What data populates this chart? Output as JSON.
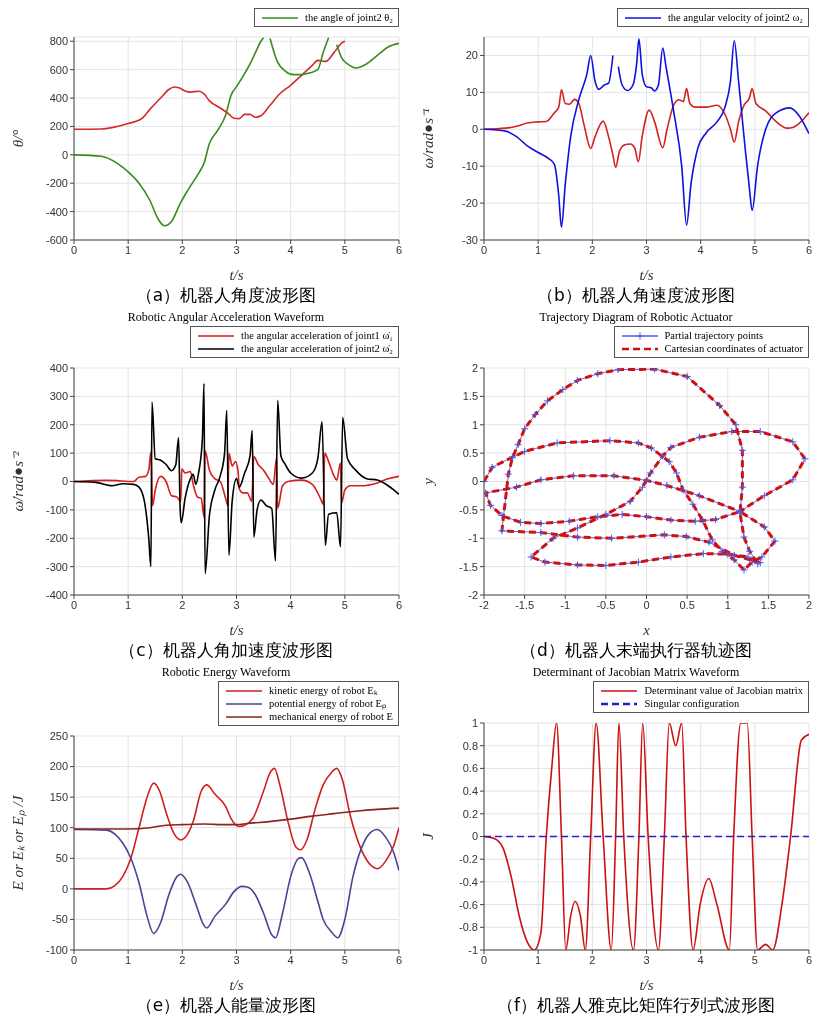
{
  "chart_data": [
    {
      "type": "line",
      "xlabel": "t/s",
      "ylabel": "θ/°",
      "xlim": [
        0,
        6
      ],
      "xticks": [
        0,
        1,
        2,
        3,
        4,
        5,
        6
      ],
      "ylim": [
        -600,
        830
      ],
      "yticks": [
        -600,
        -400,
        -200,
        0,
        200,
        400,
        600,
        800
      ],
      "grid": true,
      "legend": "top",
      "annotations": [
        "（a）机器人角度波形图"
      ],
      "series": [
        {
          "color": "#d42a2a",
          "x": [
            0,
            0.5,
            0.8,
            1.0,
            1.25,
            1.4,
            1.6,
            1.75,
            1.85,
            1.95,
            2.05,
            2.15,
            2.3,
            2.4,
            2.5,
            2.7,
            2.85,
            2.95,
            3.05,
            3.15,
            3.25,
            3.35,
            3.45,
            3.6,
            3.8,
            4.0,
            4.2,
            4.4,
            4.5,
            4.65,
            4.8,
            4.95,
            5.0
          ],
          "values": [
            180,
            182,
            200,
            220,
            255,
            320,
            400,
            460,
            478,
            470,
            450,
            442,
            448,
            430,
            380,
            330,
            290,
            258,
            255,
            285,
            285,
            265,
            275,
            340,
            430,
            490,
            560,
            630,
            665,
            658,
            720,
            790,
            800
          ]
        },
        {
          "name": "the angle of joint2 θ₂",
          "color": "#3a8a1e",
          "x": [
            0,
            0.5,
            0.8,
            1.0,
            1.2,
            1.4,
            1.55,
            1.67,
            1.8,
            1.95,
            2.1,
            2.3,
            2.4,
            2.5,
            2.65,
            2.8,
            2.9,
            3.0,
            3.1,
            3.25,
            3.35,
            3.45,
            3.5,
            3.55,
            3.62,
            3.75,
            3.9,
            4.05,
            4.2,
            4.35,
            4.5,
            4.6,
            4.7,
            4.78,
            4.85,
            4.95,
            5.05,
            5.2,
            5.4,
            5.6,
            5.8,
            6.0
          ],
          "values": [
            0,
            -10,
            -60,
            -120,
            -200,
            -320,
            -450,
            -500,
            -470,
            -350,
            -250,
            -130,
            -60,
            80,
            170,
            280,
            420,
            480,
            540,
            640,
            720,
            800,
            825,
            null,
            820,
            660,
            590,
            565,
            565,
            577,
            600,
            720,
            825,
            null,
            776,
            677,
            640,
            612,
            640,
            700,
            760,
            785
          ]
        }
      ]
    },
    {
      "type": "line",
      "xlabel": "t/s",
      "ylabel": "ω/rad●s⁻¹",
      "xlim": [
        0,
        6
      ],
      "xticks": [
        0,
        1,
        2,
        3,
        4,
        5,
        6
      ],
      "ylim": [
        -30,
        25
      ],
      "yticks": [
        -30,
        -20,
        -10,
        0,
        10,
        20
      ],
      "grid": true,
      "legend": "top",
      "annotations": [
        "（b）机器人角速度波形图"
      ],
      "series": [
        {
          "color": "#d42020",
          "x": [
            0,
            0.4,
            0.6,
            0.8,
            1.0,
            1.15,
            1.3,
            1.38,
            1.43,
            1.5,
            1.58,
            1.67,
            1.75,
            1.85,
            1.97,
            2.05,
            2.2,
            2.3,
            2.38,
            2.43,
            2.5,
            2.6,
            2.7,
            2.78,
            2.85,
            2.92,
            3.05,
            3.15,
            3.3,
            3.38,
            3.5,
            3.6,
            3.68,
            3.74,
            3.8,
            3.9,
            4.1,
            4.3,
            4.45,
            4.55,
            4.62,
            4.7,
            4.8,
            4.9,
            4.95,
            5.02,
            5.2,
            5.4,
            5.6,
            5.7,
            6.0
          ],
          "values": [
            0,
            0.3,
            0.8,
            1.7,
            2.0,
            2.1,
            4.5,
            6,
            10.7,
            7,
            6.8,
            8.1,
            7,
            1,
            -5.2,
            -2,
            2.2,
            -2,
            -7,
            -10.3,
            -6,
            -4.2,
            -4,
            -5,
            -8.8,
            -2,
            5.2,
            2,
            -5,
            0,
            6.5,
            8,
            7.5,
            11,
            7,
            6,
            6,
            6.5,
            4,
            0,
            -3.5,
            2,
            6.5,
            8.5,
            11,
            7,
            5,
            2,
            0.3,
            0.5,
            4.5
          ]
        },
        {
          "name": "the angular velocity of joint2 ω₂",
          "color": "#1010e0",
          "x": [
            0,
            0.4,
            0.6,
            0.8,
            1.0,
            1.2,
            1.3,
            1.38,
            1.43,
            1.5,
            1.6,
            1.75,
            1.9,
            1.97,
            2.05,
            2.12,
            2.22,
            2.3,
            2.38,
            2.42,
            2.48,
            2.55,
            2.65,
            2.75,
            2.82,
            2.86,
            2.92,
            3.0,
            3.08,
            3.15,
            3.22,
            3.3,
            3.36,
            3.5,
            3.65,
            3.74,
            3.82,
            3.95,
            4.1,
            4.3,
            4.45,
            4.55,
            4.62,
            4.7,
            4.82,
            4.9,
            4.95,
            5.05,
            5.2,
            5.4,
            5.65,
            5.8,
            6.0
          ],
          "values": [
            0,
            -0.5,
            -2,
            -4.5,
            -6.3,
            -8,
            -9.5,
            -18,
            -26.5,
            -15,
            -2,
            8,
            15,
            20,
            13,
            10.8,
            12,
            12.5,
            20,
            null,
            17,
            12,
            10.5,
            12,
            18,
            24.5,
            15,
            11.5,
            11.3,
            10.4,
            12,
            22,
            17,
            5,
            -10,
            -26,
            -15,
            -5,
            -1,
            2,
            6,
            13,
            24,
            13,
            -5,
            -16,
            -22,
            -10,
            0,
            4.5,
            5.8,
            4,
            -1.2
          ]
        }
      ]
    },
    {
      "type": "line",
      "title": "Robotic Angular Acceleration Waveform",
      "xlabel": "t/s",
      "ylabel": "ω̇/rad●s⁻²",
      "xlim": [
        0,
        6
      ],
      "xticks": [
        0,
        1,
        2,
        3,
        4,
        5,
        6
      ],
      "ylim": [
        -400,
        400
      ],
      "yticks": [
        -400,
        -300,
        -200,
        -100,
        0,
        100,
        200,
        300,
        400
      ],
      "grid": true,
      "legend": "top",
      "annotations": [
        "（c）机器人角加速度波形图"
      ],
      "series": [
        {
          "name": "the angular acceleration of joint1 ω̇₁",
          "color": "#d42020",
          "x": [
            0,
            0.6,
            0.8,
            1.0,
            1.1,
            1.2,
            1.32,
            1.38,
            1.42,
            1.45,
            1.5,
            1.6,
            1.7,
            1.8,
            1.9,
            1.97,
            1.99,
            2.05,
            2.15,
            2.2,
            2.28,
            2.35,
            2.4,
            2.42,
            2.5,
            2.6,
            2.7,
            2.8,
            2.84,
            2.86,
            2.92,
            2.98,
            3.03,
            3.05,
            3.12,
            3.2,
            3.28,
            3.32,
            3.4,
            3.5,
            3.6,
            3.68,
            3.74,
            3.76,
            3.85,
            3.95,
            4.2,
            4.4,
            4.55,
            4.6,
            4.63,
            4.7,
            4.8,
            4.85,
            4.92,
            4.94,
            5.0,
            5.1,
            5.3,
            5.6,
            5.8,
            6.0
          ],
          "values": [
            0,
            4,
            3,
            0,
            0,
            15,
            18,
            40,
            105,
            -85,
            -30,
            18,
            0,
            -50,
            -55,
            -70,
            45,
            30,
            35,
            -10,
            -55,
            -60,
            -125,
            108,
            40,
            10,
            0,
            -60,
            -85,
            100,
            55,
            70,
            35,
            -25,
            -40,
            -40,
            -70,
            88,
            60,
            40,
            10,
            -10,
            85,
            -95,
            -15,
            0,
            5,
            -10,
            -60,
            -80,
            100,
            70,
            20,
            5,
            65,
            -75,
            -30,
            -15,
            -15,
            -5,
            10,
            18
          ]
        },
        {
          "name": "the angular acceleration of joint2 ω̇₂",
          "color": "#000000",
          "x": [
            0,
            0.4,
            0.7,
            0.9,
            1.1,
            1.2,
            1.3,
            1.38,
            1.42,
            1.44,
            1.5,
            1.6,
            1.7,
            1.8,
            1.88,
            1.93,
            1.96,
            1.98,
            2.05,
            2.15,
            2.2,
            2.25,
            2.3,
            2.37,
            2.4,
            2.42,
            2.5,
            2.6,
            2.7,
            2.78,
            2.82,
            2.86,
            2.92,
            3.0,
            3.05,
            3.15,
            3.25,
            3.29,
            3.32,
            3.38,
            3.45,
            3.55,
            3.65,
            3.72,
            3.76,
            3.82,
            3.9,
            4.0,
            4.2,
            4.4,
            4.5,
            4.58,
            4.64,
            4.7,
            4.85,
            4.92,
            4.96,
            5.05,
            5.2,
            5.4,
            5.6,
            5.8,
            6.0
          ],
          "values": [
            0,
            -3,
            -15,
            -8,
            -10,
            -20,
            -70,
            -200,
            -300,
            280,
            80,
            75,
            60,
            38,
            60,
            155,
            -100,
            -145,
            -60,
            10,
            25,
            -10,
            30,
            150,
            345,
            -325,
            -120,
            -30,
            20,
            100,
            250,
            -260,
            -70,
            10,
            -20,
            30,
            90,
            180,
            -195,
            -100,
            -65,
            -85,
            -95,
            -280,
            285,
            90,
            60,
            30,
            12,
            30,
            80,
            210,
            -225,
            -115,
            -110,
            -230,
            225,
            80,
            40,
            10,
            5,
            -15,
            -45
          ]
        }
      ]
    },
    {
      "type": "line",
      "title": "Trajectory Diagram of Robotic Actuator",
      "xlabel": "x",
      "ylabel": "y",
      "xlim": [
        -2,
        2
      ],
      "xticks": [
        -2,
        -1.5,
        -1,
        -0.5,
        0,
        0.5,
        1,
        1.5,
        2
      ],
      "ylim": [
        -2,
        2
      ],
      "yticks": [
        -2,
        -1.5,
        -1,
        -0.5,
        0,
        0.5,
        1,
        1.5,
        2
      ],
      "grid": true,
      "legend": "top",
      "annotations": [
        "（d）机器人末端执行器轨迹图"
      ],
      "series": [
        {
          "name": "Partial trajectory points",
          "color": "#4a5ae8",
          "marker": "cross",
          "line_style": "solid",
          "x": [
            -2,
            -1.9,
            -1.65,
            -1.5,
            -1.1,
            -0.45,
            -0.1,
            0.06,
            0.28,
            0.37,
            0.45,
            0.57,
            0.69,
            0.81,
            0.93,
            1.08,
            1.2,
            1.3,
            1.42,
            1.58,
            1.45,
            1.15,
            0.85,
            0.6,
            0.3,
            0,
            -0.3,
            -0.6,
            -0.95,
            -1.3,
            -1.55,
            -1.78,
            -1.92,
            -1.98,
            -1.6,
            -1.3,
            -0.9,
            -0.4,
            0,
            0.25,
            0.65,
            1.15,
            1.45,
            1.8,
            1.95,
            1.8,
            1.4,
            1.05,
            0.65,
            0.3,
            0.2,
            0.05,
            -0.05,
            -0.2,
            -0.5,
            -0.85,
            -1.15,
            -1.42,
            -1.25,
            -0.85,
            -0.5,
            -0.1,
            0.3,
            0.7,
            1.0,
            1.25,
            1.37,
            1.27,
            1.2,
            1.15,
            1.18,
            1.18,
            1.1,
            0.9,
            0.5,
            0.1,
            -0.35,
            -0.6,
            -0.85,
            -1.03,
            -1.22,
            -1.37,
            -1.5,
            -1.58,
            -1.65,
            -1.7,
            -1.78,
            -1.3,
            -0.85,
            -0.43,
            0.22,
            0.49,
            0.77,
            1.08,
            1.4
          ],
          "values": [
            0,
            0.25,
            0.43,
            0.53,
            0.68,
            0.72,
            0.68,
            0.59,
            0.35,
            0.15,
            -0.15,
            -0.4,
            -0.68,
            -1.03,
            -1.23,
            -1.38,
            -1.56,
            -1.42,
            -1.33,
            -1.05,
            -0.8,
            -0.53,
            -0.67,
            -0.7,
            -0.68,
            -0.62,
            -0.58,
            -0.62,
            -0.7,
            -0.74,
            -0.72,
            -0.6,
            -0.42,
            -0.2,
            -0.1,
            0.03,
            0.1,
            0.1,
            0.02,
            -0.07,
            -0.25,
            -0.53,
            -0.25,
            0.03,
            0.4,
            0.7,
            0.88,
            0.88,
            0.78,
            0.6,
            0.45,
            0.15,
            -0.1,
            -0.35,
            -0.58,
            -0.82,
            -1.0,
            -1.33,
            -1.42,
            -1.47,
            -1.48,
            -1.42,
            -1.33,
            -1.27,
            -1.28,
            -1.33,
            -1.45,
            -1.23,
            -0.98,
            -0.55,
            -0.1,
            0.55,
            1.0,
            1.34,
            1.85,
            1.98,
            1.97,
            1.9,
            1.78,
            1.62,
            1.42,
            1.18,
            0.93,
            0.65,
            0.42,
            0.13,
            -0.87,
            -0.9,
            -0.98,
            -1.0,
            -0.94,
            -0.97,
            -1.07,
            -1.3,
            -1.43
          ]
        },
        {
          "name": "Cartesian coordinates of actuator",
          "color": "#d01010",
          "marker": "none",
          "line_style": "dashed",
          "x": [
            -2,
            -1.9,
            -1.65,
            -1.5,
            -1.1,
            -0.45,
            -0.1,
            0.06,
            0.28,
            0.37,
            0.45,
            0.57,
            0.69,
            0.81,
            0.93,
            1.08,
            1.2,
            1.3,
            1.42,
            1.58,
            1.45,
            1.15,
            0.85,
            0.6,
            0.3,
            0,
            -0.3,
            -0.6,
            -0.95,
            -1.3,
            -1.55,
            -1.78,
            -1.92,
            -1.98,
            -1.6,
            -1.3,
            -0.9,
            -0.4,
            0,
            0.25,
            0.65,
            1.15,
            1.45,
            1.8,
            1.95,
            1.8,
            1.4,
            1.05,
            0.65,
            0.3,
            0.2,
            0.05,
            -0.05,
            -0.2,
            -0.5,
            -0.85,
            -1.15,
            -1.42,
            -1.25,
            -0.85,
            -0.5,
            -0.1,
            0.3,
            0.7,
            1.0,
            1.25,
            1.37,
            1.27,
            1.2,
            1.15,
            1.18,
            1.18,
            1.1,
            0.9,
            0.5,
            0.1,
            -0.35,
            -0.6,
            -0.85,
            -1.03,
            -1.22,
            -1.37,
            -1.5,
            -1.58,
            -1.65,
            -1.7,
            -1.78,
            -1.3,
            -0.85,
            -0.43,
            0.22,
            0.49,
            0.77,
            1.08,
            1.4
          ],
          "values": [
            0,
            0.25,
            0.43,
            0.53,
            0.68,
            0.72,
            0.68,
            0.59,
            0.35,
            0.15,
            -0.15,
            -0.4,
            -0.68,
            -1.03,
            -1.23,
            -1.38,
            -1.56,
            -1.42,
            -1.33,
            -1.05,
            -0.8,
            -0.53,
            -0.67,
            -0.7,
            -0.68,
            -0.62,
            -0.58,
            -0.62,
            -0.7,
            -0.74,
            -0.72,
            -0.6,
            -0.42,
            -0.2,
            -0.1,
            0.03,
            0.1,
            0.1,
            0.02,
            -0.07,
            -0.25,
            -0.53,
            -0.25,
            0.03,
            0.4,
            0.7,
            0.88,
            0.88,
            0.78,
            0.6,
            0.45,
            0.15,
            -0.1,
            -0.35,
            -0.58,
            -0.82,
            -1.0,
            -1.33,
            -1.42,
            -1.47,
            -1.48,
            -1.42,
            -1.33,
            -1.27,
            -1.28,
            -1.33,
            -1.45,
            -1.23,
            -0.98,
            -0.55,
            -0.1,
            0.55,
            1.0,
            1.34,
            1.85,
            1.98,
            1.97,
            1.9,
            1.78,
            1.62,
            1.42,
            1.18,
            0.93,
            0.65,
            0.42,
            0.13,
            -0.87,
            -0.9,
            -0.98,
            -1.0,
            -0.94,
            -0.97,
            -1.07,
            -1.3,
            -1.43
          ]
        }
      ]
    },
    {
      "type": "line",
      "title": "Robotic Energy Waveform",
      "xlabel": "t/s",
      "ylabel": "E or Eₖ or Eₚ /J",
      "xlim": [
        0,
        6
      ],
      "xticks": [
        0,
        1,
        2,
        3,
        4,
        5,
        6
      ],
      "ylim": [
        -100,
        250
      ],
      "yticks": [
        -100,
        -50,
        0,
        50,
        100,
        150,
        200,
        250
      ],
      "grid": true,
      "legend": "top",
      "annotations": [
        "（e）机器人能量波形图"
      ],
      "series": [
        {
          "name": "kinetic energy of robot Eₖ",
          "color": "#d01f1f",
          "x": [
            0,
            0.6,
            0.75,
            0.9,
            1.05,
            1.2,
            1.35,
            1.47,
            1.58,
            1.7,
            1.85,
            1.97,
            2.1,
            2.2,
            2.35,
            2.45,
            2.6,
            2.8,
            2.9,
            3.05,
            3.15,
            3.3,
            3.5,
            3.62,
            3.7,
            3.8,
            3.95,
            4.1,
            4.18,
            4.3,
            4.45,
            4.6,
            4.75,
            4.85,
            4.95,
            5.1,
            5.3,
            5.5,
            5.6,
            5.75,
            5.9,
            6.0
          ],
          "values": [
            0,
            0,
            5,
            20,
            50,
            100,
            150,
            173,
            160,
            125,
            90,
            80,
            90,
            110,
            160,
            170,
            155,
            135,
            115,
            102,
            104,
            115,
            160,
            190,
            197,
            170,
            110,
            68,
            64,
            80,
            130,
            170,
            190,
            197,
            180,
            120,
            65,
            37,
            33,
            45,
            70,
            100
          ]
        },
        {
          "name": "potential energy of robot Eₚ",
          "color": "#4b4394",
          "x": [
            0,
            0.6,
            0.75,
            0.9,
            1.05,
            1.2,
            1.35,
            1.47,
            1.6,
            1.75,
            1.9,
            1.97,
            2.1,
            2.25,
            2.4,
            2.45,
            2.6,
            2.8,
            2.95,
            3.1,
            3.2,
            3.35,
            3.5,
            3.65,
            3.72,
            3.85,
            4.0,
            4.15,
            4.2,
            4.35,
            4.5,
            4.6,
            4.75,
            4.87,
            5.0,
            5.15,
            5.3,
            5.45,
            5.6,
            5.75,
            5.9,
            6.0
          ],
          "values": [
            97,
            96,
            90,
            75,
            50,
            10,
            -45,
            -73,
            -55,
            -10,
            20,
            24,
            10,
            -25,
            -60,
            -64,
            -45,
            -25,
            -5,
            4,
            3,
            -10,
            -40,
            -75,
            -80,
            -40,
            20,
            50,
            51,
            25,
            -20,
            -50,
            -70,
            -80,
            -50,
            20,
            65,
            90,
            97,
            85,
            60,
            30
          ]
        },
        {
          "name": "mechanical energy of robot E",
          "color": "#8b2323",
          "x": [
            0,
            1.0,
            1.4,
            1.7,
            2.0,
            2.4,
            2.8,
            3.0,
            3.2,
            3.6,
            4.0,
            4.4,
            4.8,
            5.2,
            5.6,
            6.0
          ],
          "values": [
            98,
            98,
            100,
            104,
            105,
            106,
            105,
            105,
            107,
            110,
            114,
            119,
            123,
            127,
            130,
            132
          ]
        }
      ]
    },
    {
      "type": "line",
      "title": "Determinant of Jacobian Matrix Waveform",
      "xlabel": "t/s",
      "ylabel": "J",
      "xlim": [
        0,
        6
      ],
      "xticks": [
        0,
        1,
        2,
        3,
        4,
        5,
        6
      ],
      "ylim": [
        -1,
        1
      ],
      "yticks": [
        -1,
        -0.8,
        -0.6,
        -0.4,
        -0.2,
        0,
        0.2,
        0.4,
        0.6,
        0.8,
        1
      ],
      "grid": true,
      "legend": "top",
      "annotations": [
        "（f）机器人雅克比矩阵行列式波形图"
      ],
      "series": [
        {
          "name": "Determinant value of Jacobian matrix",
          "color": "#cc1010",
          "x": [
            0,
            0.2,
            0.35,
            0.5,
            0.65,
            0.8,
            0.93,
            1.05,
            1.15,
            1.25,
            1.34,
            1.43,
            1.51,
            1.6,
            1.68,
            1.78,
            1.87,
            1.97,
            2.07,
            2.2,
            2.35,
            2.43,
            2.49,
            2.58,
            2.76,
            2.86,
            2.93,
            3.03,
            3.22,
            3.33,
            3.42,
            3.54,
            3.65,
            3.73,
            3.86,
            3.99,
            4.15,
            4.3,
            4.53,
            4.61,
            4.74,
            4.86,
            4.95,
            5.05,
            5.2,
            5.33,
            5.5,
            5.66,
            5.86,
            6.0
          ],
          "values": [
            0,
            -0.02,
            -0.1,
            -0.35,
            -0.7,
            -0.93,
            -1,
            -0.85,
            0,
            0.6,
            1,
            0,
            -1,
            -0.7,
            -0.57,
            -0.7,
            -1,
            0,
            1,
            0,
            -1,
            0,
            1,
            0,
            -1,
            0,
            1,
            0,
            -1,
            0,
            1,
            0.8,
            1,
            0,
            -1,
            -0.6,
            -0.37,
            -0.6,
            -1,
            0,
            1,
            1,
            0,
            -1,
            -0.95,
            -1,
            -0.6,
            0,
            0.85,
            0.9
          ]
        },
        {
          "name": "Singular configuration",
          "color": "#2020cc",
          "line_style": "dashed",
          "x": [
            0,
            6
          ],
          "values": [
            0,
            0
          ]
        }
      ]
    }
  ]
}
